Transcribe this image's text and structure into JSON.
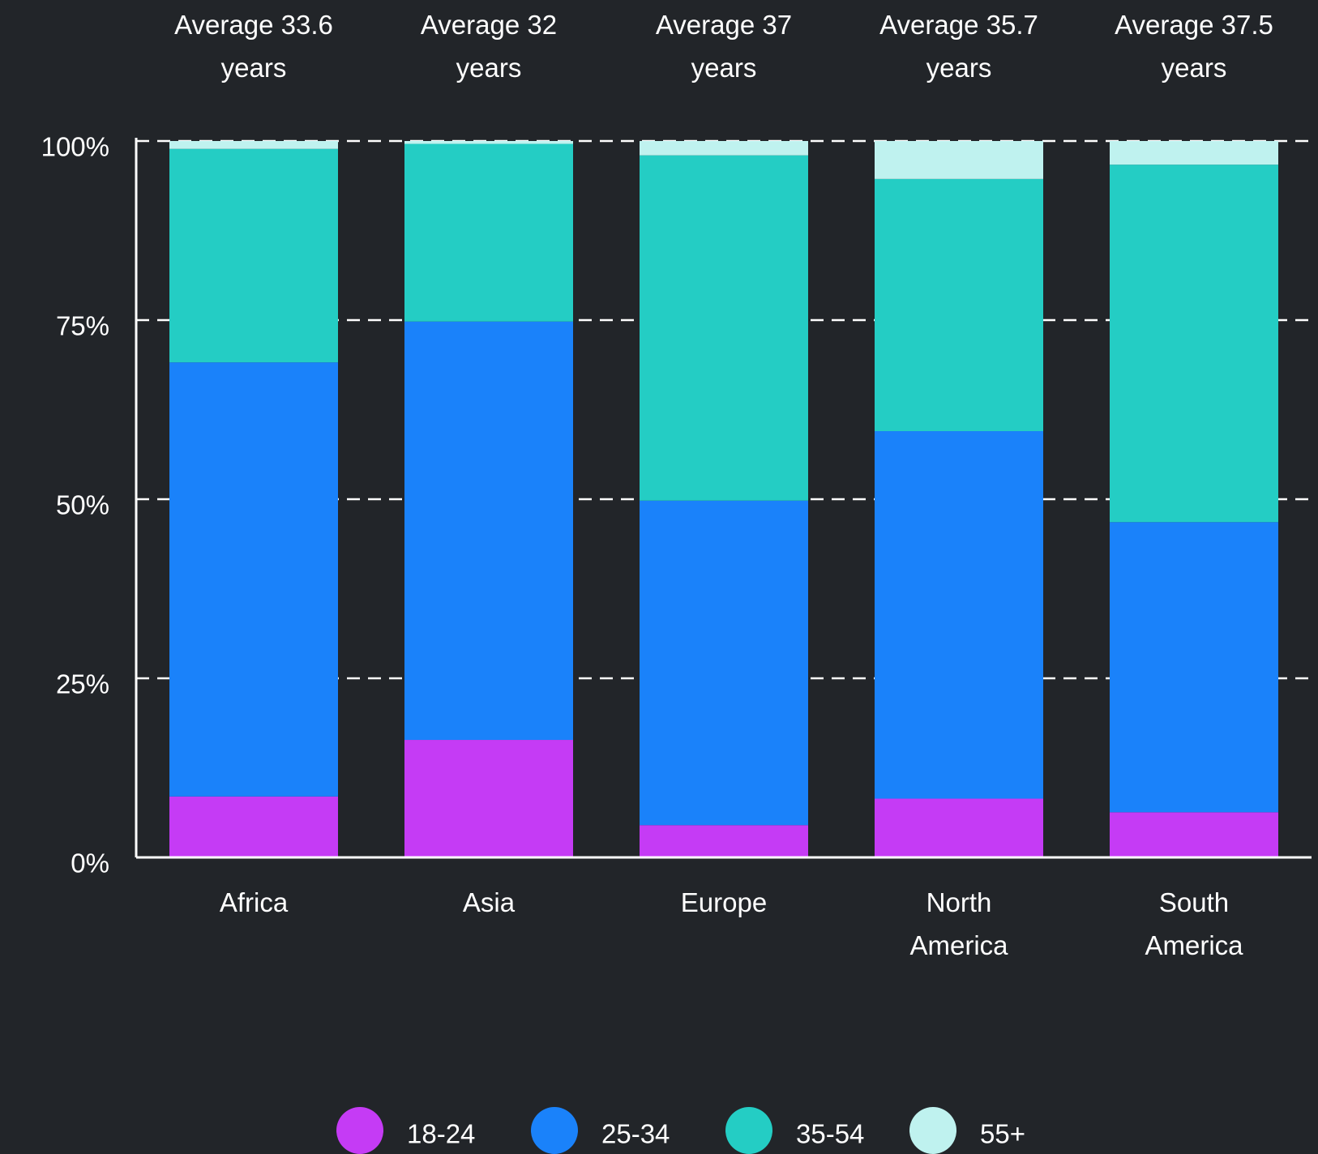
{
  "chart_data": {
    "type": "stacked_bar",
    "categories": [
      "Africa",
      "Asia",
      "Europe",
      "North America",
      "South America"
    ],
    "annotations": [
      "Average 33.6 years",
      "Average 32 years",
      "Average 37 years",
      "Average 35.7 years",
      "Average 37.5 years"
    ],
    "series": [
      {
        "name": "18-24",
        "color": "#c53bf5",
        "values": [
          8.5,
          16.4,
          4.5,
          8.2,
          6.3
        ]
      },
      {
        "name": "25-34",
        "color": "#1a82fa",
        "values": [
          60.6,
          58.4,
          45.3,
          51.3,
          40.5
        ]
      },
      {
        "name": "35-54",
        "color": "#24cdc4",
        "values": [
          29.8,
          24.8,
          48.2,
          35.2,
          49.9
        ]
      },
      {
        "name": "55+",
        "color": "#bff2ef",
        "values": [
          1.1,
          0.4,
          2.0,
          5.3,
          3.3
        ]
      }
    ],
    "ylim": [
      0,
      100
    ],
    "yticks": [
      {
        "value": 0,
        "label": "0%"
      },
      {
        "value": 25,
        "label": "25%"
      },
      {
        "value": 50,
        "label": "50%"
      },
      {
        "value": 75,
        "label": "75%"
      },
      {
        "value": 100,
        "label": "100%"
      }
    ],
    "grid": true
  }
}
